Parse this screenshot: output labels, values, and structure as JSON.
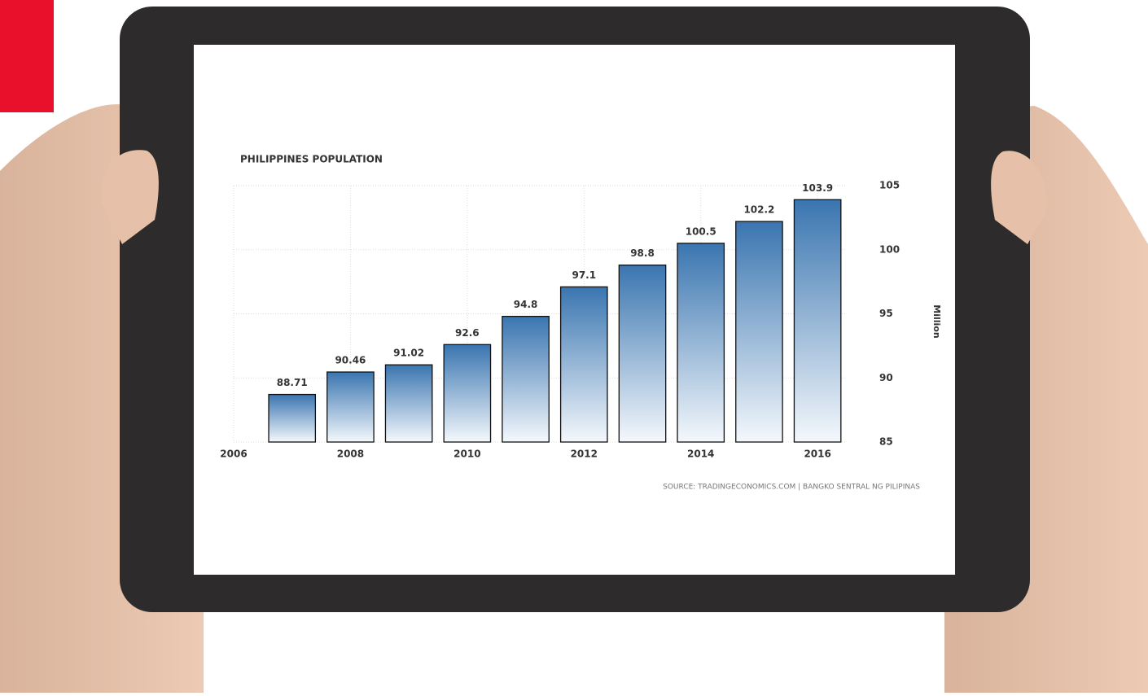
{
  "chart_data": {
    "type": "bar",
    "title": "PHILIPPINES POPULATION",
    "x": [
      2007,
      2008,
      2009,
      2010,
      2011,
      2012,
      2013,
      2014,
      2015,
      2016
    ],
    "values": [
      88.71,
      90.46,
      91.02,
      92.6,
      94.8,
      97.1,
      98.8,
      100.5,
      102.2,
      103.9
    ],
    "color": "#3a75b0",
    "xlim": [
      2006,
      2016.5
    ],
    "xticks": [
      2006,
      2008,
      2010,
      2012,
      2014,
      2016
    ],
    "ylim": [
      85,
      105
    ],
    "yticks": [
      85,
      90,
      95,
      100,
      105
    ],
    "y_axis_label": "Million",
    "y_axis_side": "right",
    "grid": true,
    "source": "SOURCE: TRADINGECONOMICS.COM | BANGKO SENTRAL NG PILIPINAS"
  }
}
